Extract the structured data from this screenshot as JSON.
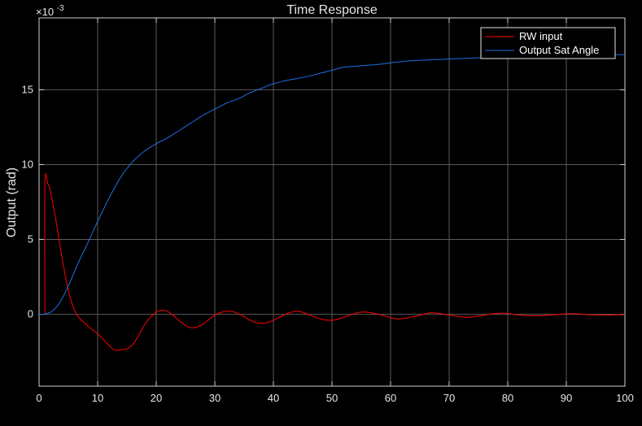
{
  "chart_data": {
    "type": "line",
    "title": "Time Response",
    "xlabel": "",
    "ylabel": "Output (rad)",
    "y_exponent_label": "×10",
    "y_exponent_power": "-3",
    "xlim": [
      0,
      100
    ],
    "ylim": [
      -4.8,
      19.8
    ],
    "xticks": [
      0,
      10,
      20,
      30,
      40,
      50,
      60,
      70,
      80,
      90,
      100
    ],
    "yticks": [
      0,
      5,
      10,
      15
    ],
    "grid": true,
    "legend_position": "top-right",
    "series": [
      {
        "name": "RW input",
        "color": "#ff0000",
        "x": [
          1,
          1,
          1.5,
          2,
          3,
          4,
          5,
          6,
          7,
          8,
          9,
          10,
          11,
          12,
          13,
          14,
          15,
          16,
          17,
          18,
          19,
          20,
          21,
          22,
          23,
          24,
          25,
          26,
          27,
          28,
          29,
          30,
          31,
          32,
          33,
          34,
          35,
          36,
          37,
          38,
          39,
          40,
          42,
          44,
          46,
          48,
          50,
          52,
          55,
          58,
          61,
          64,
          67,
          70,
          73,
          76,
          79,
          82,
          85,
          88,
          91,
          94,
          97,
          100
        ],
        "y": [
          0,
          8.7,
          8.7,
          8.1,
          6.0,
          3.6,
          1.6,
          0.3,
          -0.3,
          -0.65,
          -1.0,
          -1.3,
          -1.7,
          -2.1,
          -2.4,
          -2.35,
          -2.3,
          -2.0,
          -1.4,
          -0.7,
          -0.2,
          0.15,
          0.28,
          0.18,
          -0.1,
          -0.45,
          -0.75,
          -0.9,
          -0.85,
          -0.65,
          -0.35,
          -0.05,
          0.12,
          0.2,
          0.18,
          0.05,
          -0.15,
          -0.4,
          -0.55,
          -0.6,
          -0.55,
          -0.4,
          0.0,
          0.2,
          0.0,
          -0.3,
          -0.4,
          -0.2,
          0.15,
          0.0,
          -0.3,
          -0.15,
          0.1,
          -0.05,
          -0.2,
          -0.05,
          0.08,
          -0.05,
          -0.1,
          -0.02,
          0.05,
          -0.03,
          -0.05,
          0.0
        ]
      },
      {
        "name": "Output Sat Angle",
        "color": "#1e6fe6",
        "x": [
          0,
          1,
          2,
          3,
          4,
          5,
          6,
          7,
          8,
          10,
          12,
          14,
          16,
          18,
          20,
          22,
          24,
          26,
          28,
          30,
          32,
          34,
          36,
          38,
          40,
          42,
          44,
          46,
          48,
          50,
          52,
          55,
          58,
          61,
          64,
          67,
          70,
          73,
          76,
          79,
          82,
          85,
          88,
          91,
          94,
          97,
          100
        ],
        "y": [
          0,
          0.02,
          0.15,
          0.5,
          1.1,
          1.9,
          2.8,
          3.7,
          4.5,
          6.2,
          7.8,
          9.2,
          10.2,
          10.9,
          11.4,
          11.8,
          12.3,
          12.8,
          13.3,
          13.7,
          14.1,
          14.4,
          14.8,
          15.1,
          15.4,
          15.6,
          15.75,
          15.9,
          16.1,
          16.3,
          16.5,
          16.6,
          16.7,
          16.85,
          16.95,
          17.0,
          17.05,
          17.1,
          17.15,
          17.2,
          17.22,
          17.25,
          17.28,
          17.3,
          17.32,
          17.33,
          17.35
        ]
      }
    ]
  }
}
